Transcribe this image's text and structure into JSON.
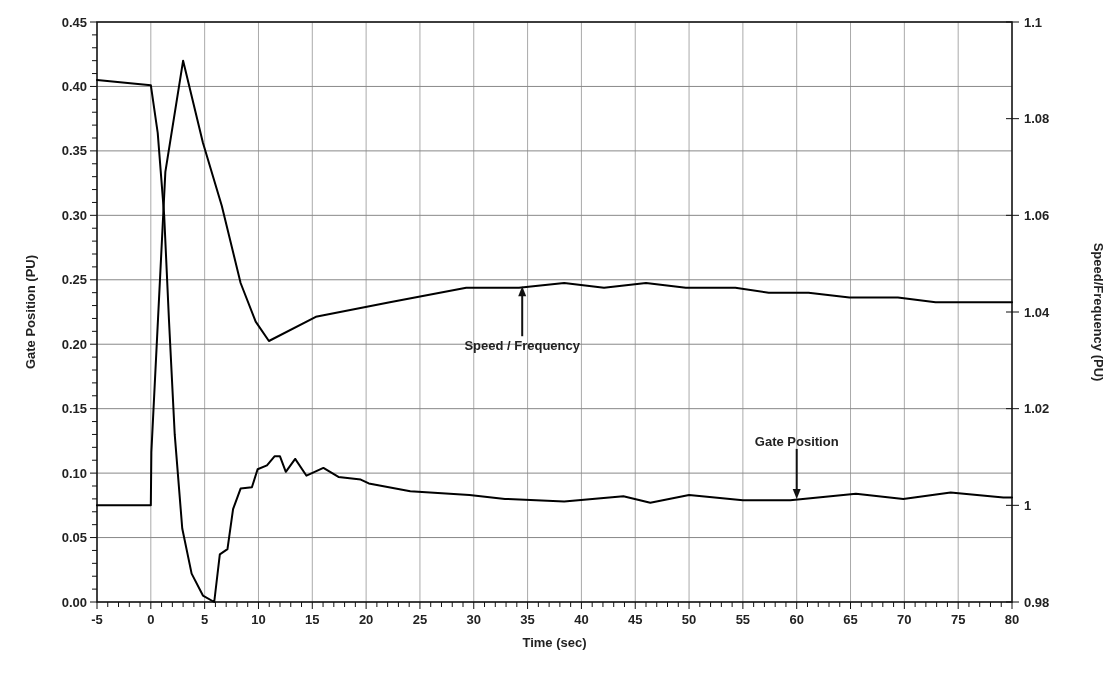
{
  "chart_data": {
    "type": "line",
    "xlabel": "Time (sec)",
    "ylabel": "Gate Position (PU)",
    "y2label": "Speed/Frequency (PU)",
    "xlim": [
      -5,
      80
    ],
    "ylim": [
      0,
      0.45
    ],
    "y2lim": [
      0.98,
      1.1
    ],
    "xticks": [
      -5,
      0,
      5,
      10,
      15,
      20,
      25,
      30,
      35,
      40,
      45,
      50,
      55,
      60,
      65,
      70,
      75,
      80,
      {
        "value": -4,
        "label": null
      },
      {
        "value": -3,
        "label": null
      },
      {
        "value": -2,
        "label": null
      },
      {
        "value": -1,
        "label": null
      },
      {
        "value": 1,
        "label": null
      },
      {
        "value": 2,
        "label": null
      },
      {
        "value": 3,
        "label": null
      },
      {
        "value": 4,
        "label": null
      },
      {
        "value": 6,
        "label": null
      },
      {
        "value": 7,
        "label": null
      },
      {
        "value": 8,
        "label": null
      },
      {
        "value": 9,
        "label": null
      },
      {
        "value": 11,
        "label": null
      },
      {
        "value": 12,
        "label": null
      },
      {
        "value": 13,
        "label": null
      },
      {
        "value": 14,
        "label": null
      },
      {
        "value": 16,
        "label": null
      },
      {
        "value": 17,
        "label": null
      },
      {
        "value": 18,
        "label": null
      },
      {
        "value": 19,
        "label": null
      },
      {
        "value": 21,
        "label": null
      },
      {
        "value": 22,
        "label": null
      },
      {
        "value": 23,
        "label": null
      },
      {
        "value": 24,
        "label": null
      },
      {
        "value": 26,
        "label": null
      },
      {
        "value": 27,
        "label": null
      },
      {
        "value": 28,
        "label": null
      },
      {
        "value": 29,
        "label": null
      },
      {
        "value": 31,
        "label": null
      },
      {
        "value": 32,
        "label": null
      },
      {
        "value": 33,
        "label": null
      },
      {
        "value": 34,
        "label": null
      },
      {
        "value": 36,
        "label": null
      },
      {
        "value": 37,
        "label": null
      },
      {
        "value": 38,
        "label": null
      },
      {
        "value": 39,
        "label": null
      },
      {
        "value": 41,
        "label": null
      },
      {
        "value": 42,
        "label": null
      },
      {
        "value": 43,
        "label": null
      },
      {
        "value": 44,
        "label": null
      },
      {
        "value": 46,
        "label": null
      },
      {
        "value": 47,
        "label": null
      },
      {
        "value": 48,
        "label": null
      },
      {
        "value": 49,
        "label": null
      },
      {
        "value": 51,
        "label": null
      },
      {
        "value": 52,
        "label": null
      },
      {
        "value": 53,
        "label": null
      },
      {
        "value": 54,
        "label": null
      },
      {
        "value": 56,
        "label": null
      },
      {
        "value": 57,
        "label": null
      },
      {
        "value": 58,
        "label": null
      },
      {
        "value": 59,
        "label": null
      },
      {
        "value": 61,
        "label": null
      },
      {
        "value": 62,
        "label": null
      },
      {
        "value": 63,
        "label": null
      },
      {
        "value": 64,
        "label": null
      },
      {
        "value": 66,
        "label": null
      },
      {
        "value": 67,
        "label": null
      },
      {
        "value": 68,
        "label": null
      },
      {
        "value": 69,
        "label": null
      },
      {
        "value": 71,
        "label": null
      },
      {
        "value": 72,
        "label": null
      },
      {
        "value": 73,
        "label": null
      },
      {
        "value": 74,
        "label": null
      },
      {
        "value": 76,
        "label": null
      },
      {
        "value": 77,
        "label": null
      },
      {
        "value": 78,
        "label": null
      },
      {
        "value": 79,
        "label": null
      }
    ],
    "yticks": [
      {
        "value": 0,
        "label": "0.00"
      },
      {
        "value": 0.05,
        "label": "0.05"
      },
      {
        "value": 0.1,
        "label": "0.10"
      },
      {
        "value": 0.15,
        "label": "0.15"
      },
      {
        "value": 0.2,
        "label": "0.20"
      },
      {
        "value": 0.25,
        "label": "0.25"
      },
      {
        "value": 0.3,
        "label": "0.30"
      },
      {
        "value": 0.35,
        "label": "0.35"
      },
      {
        "value": 0.4,
        "label": "0.40"
      },
      {
        "value": 0.45,
        "label": "0.45"
      },
      {
        "value": 0.01,
        "label": null
      },
      {
        "value": 0.02,
        "label": null
      },
      {
        "value": 0.03,
        "label": null
      },
      {
        "value": 0.04,
        "label": null
      },
      {
        "value": 0.06,
        "label": null
      },
      {
        "value": 0.07,
        "label": null
      },
      {
        "value": 0.08,
        "label": null
      },
      {
        "value": 0.09,
        "label": null
      },
      {
        "value": 0.11,
        "label": null
      },
      {
        "value": 0.12,
        "label": null
      },
      {
        "value": 0.13,
        "label": null
      },
      {
        "value": 0.14,
        "label": null
      },
      {
        "value": 0.16,
        "label": null
      },
      {
        "value": 0.17,
        "label": null
      },
      {
        "value": 0.18,
        "label": null
      },
      {
        "value": 0.19,
        "label": null
      },
      {
        "value": 0.21,
        "label": null
      },
      {
        "value": 0.22,
        "label": null
      },
      {
        "value": 0.23,
        "label": null
      },
      {
        "value": 0.24,
        "label": null
      },
      {
        "value": 0.26,
        "label": null
      },
      {
        "value": 0.27,
        "label": null
      },
      {
        "value": 0.28,
        "label": null
      },
      {
        "value": 0.29,
        "label": null
      },
      {
        "value": 0.31,
        "label": null
      },
      {
        "value": 0.32,
        "label": null
      },
      {
        "value": 0.33,
        "label": null
      },
      {
        "value": 0.34,
        "label": null
      },
      {
        "value": 0.36,
        "label": null
      },
      {
        "value": 0.37,
        "label": null
      },
      {
        "value": 0.38,
        "label": null
      },
      {
        "value": 0.39,
        "label": null
      },
      {
        "value": 0.41,
        "label": null
      },
      {
        "value": 0.42,
        "label": null
      },
      {
        "value": 0.43,
        "label": null
      },
      {
        "value": 0.44,
        "label": null
      }
    ],
    "y2ticks": [
      0.98,
      1,
      1.02,
      1.04,
      1.06,
      1.08,
      1.1
    ],
    "grid": true,
    "marker": "none",
    "line_style": "solid",
    "series": [
      {
        "color": "#000000",
        "x": [
          -5,
          0,
          0.64,
          1.24,
          1.69,
          2.22,
          2.92,
          3.79,
          4.84,
          5.89,
          6.41,
          7.12,
          7.64,
          8.34,
          9.39,
          9.92,
          10.79,
          11.49,
          12.0,
          12.54,
          13.41,
          14.46,
          16.03,
          17.43,
          19.5,
          20.25,
          24.1,
          29.6,
          32.9,
          38.4,
          43.9,
          46.4,
          50,
          55,
          59.4,
          65.5,
          69.9,
          74.3,
          79.2,
          80
        ],
        "values": [
          0.405,
          0.401,
          0.364,
          0.3,
          0.218,
          0.13,
          0.057,
          0.022,
          0.005,
          0.0,
          0.037,
          0.041,
          0.072,
          0.088,
          0.089,
          0.103,
          0.106,
          0.113,
          0.113,
          0.101,
          0.111,
          0.098,
          0.104,
          0.097,
          0.095,
          0.092,
          0.086,
          0.083,
          0.08,
          0.078,
          0.082,
          0.077,
          0.083,
          0.079,
          0.079,
          0.084,
          0.08,
          0.085,
          0.081,
          0.081
        ]
      },
      {
        "color": "#000000",
        "axis": "y2",
        "x": [
          -5,
          0,
          0.05,
          1.35,
          3.0,
          4.84,
          6.59,
          8.34,
          9.74,
          10.97,
          15.33,
          22.2,
          29.3,
          34.2,
          38.4,
          42.1,
          46,
          49.7,
          54.3,
          57.4,
          61.1,
          64.9,
          69.4,
          72.9,
          79.3,
          80
        ],
        "values": [
          1.0,
          1.0,
          1.011,
          1.069,
          1.092,
          1.075,
          1.062,
          1.046,
          1.038,
          1.034,
          1.039,
          1.042,
          1.045,
          1.045,
          1.046,
          1.045,
          1.046,
          1.045,
          1.045,
          1.044,
          1.044,
          1.043,
          1.043,
          1.042,
          1.042,
          1.042
        ]
      }
    ],
    "annotations": [
      {
        "text": "Speed / Frequency",
        "x": 34.5,
        "y": 0.245
      },
      {
        "text": "Gate Position",
        "x": 60,
        "y": 0.08
      }
    ]
  }
}
